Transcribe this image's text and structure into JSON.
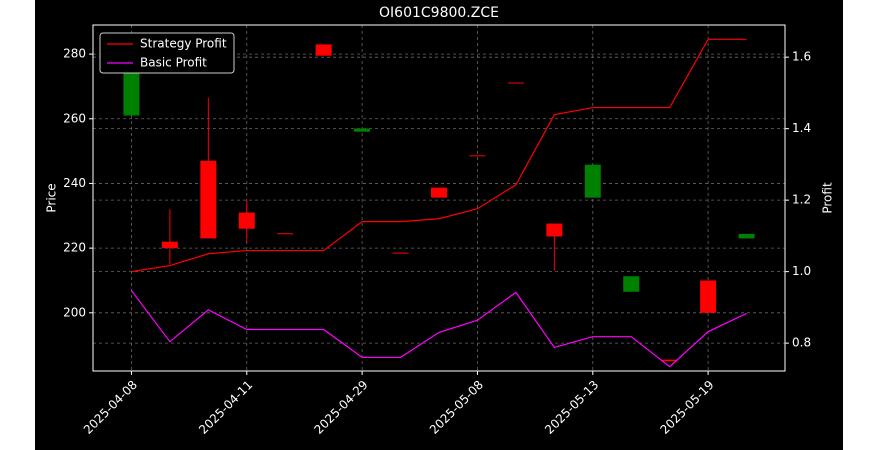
{
  "chart_data": {
    "type": "candlestick",
    "title": "OI601C9800.ZCE",
    "ylabel": "Price",
    "y2label": "Profit",
    "categories": [
      "2025-04-08",
      null,
      null,
      "2025-04-11",
      null,
      null,
      "2025-04-29",
      null,
      null,
      "2025-05-08",
      null,
      null,
      "2025-05-13",
      null,
      null,
      "2025-05-19",
      null
    ],
    "ohlc": {
      "open": [
        261,
        222,
        247,
        231,
        224.6,
        283,
        256,
        218.6,
        238.7,
        248.7,
        271.2,
        227.6,
        235.6,
        206.5,
        185.5,
        210,
        223
      ],
      "high": [
        274,
        232,
        266.5,
        235,
        224.6,
        283,
        257,
        218.6,
        238.7,
        248.7,
        271.2,
        227.6,
        245.8,
        211.3,
        185.5,
        210,
        224.4
      ],
      "low": [
        261,
        215,
        223,
        221.5,
        224.4,
        279.5,
        256,
        218.4,
        235.6,
        248.5,
        271,
        213,
        235.6,
        206.5,
        185,
        200,
        223
      ],
      "close": [
        274,
        220,
        223,
        226,
        224.4,
        279.5,
        257,
        218.4,
        235.6,
        248.5,
        271,
        223.6,
        245.8,
        211.3,
        185,
        200,
        224.4
      ],
      "up_color": "#008000",
      "down_color": "#ff0000"
    },
    "series": [
      {
        "name": "Strategy Profit",
        "color": "#ff0000",
        "axis": "y2",
        "values": [
          1.0,
          1.017,
          1.05,
          1.059,
          1.059,
          1.059,
          1.14,
          1.14,
          1.148,
          1.176,
          1.243,
          1.439,
          1.459,
          1.459,
          1.459,
          1.65,
          1.65
        ]
      },
      {
        "name": "Basic Profit",
        "color": "#ff00ff",
        "axis": "y2",
        "values": [
          0.947,
          0.804,
          0.893,
          0.838,
          0.838,
          0.838,
          0.76,
          0.76,
          0.83,
          0.864,
          0.942,
          0.788,
          0.818,
          0.818,
          0.734,
          0.832,
          0.883
        ]
      }
    ],
    "ylim": [
      182,
      289
    ],
    "yticks": [
      200,
      220,
      240,
      260,
      280
    ],
    "y2lim": [
      0.722,
      1.69
    ],
    "y2ticks": [
      0.8,
      {
        "value": 1,
        "label": "1.0"
      },
      1.2,
      1.4,
      1.6
    ],
    "grid": true,
    "legend": "upper left"
  }
}
